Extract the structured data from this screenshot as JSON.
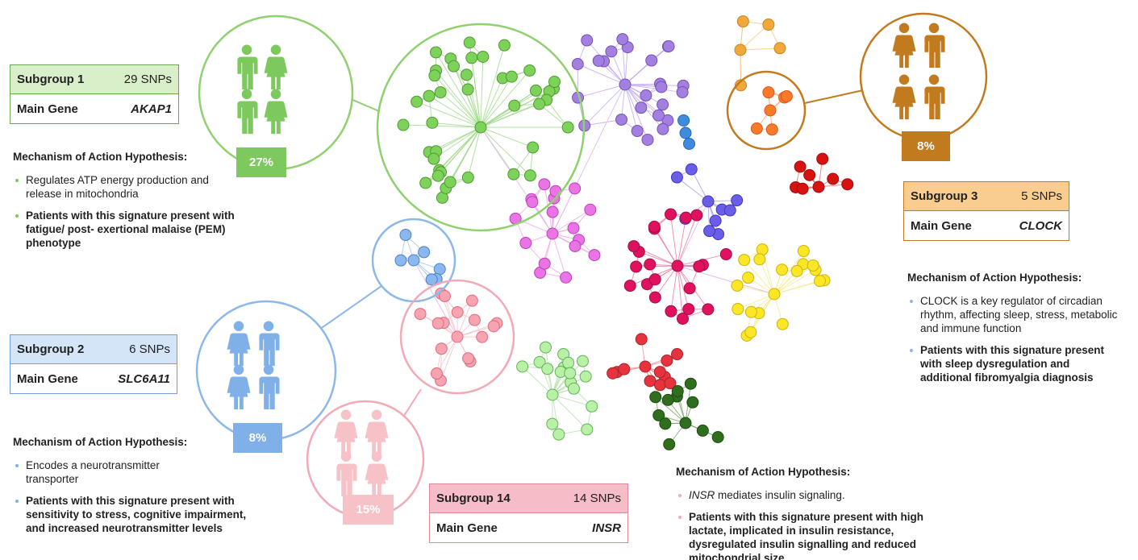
{
  "subgroups": [
    {
      "name": "Subgroup 1",
      "snps": "29 SNPs",
      "gene_label": "Main Gene",
      "gene": "AKAP1",
      "percent": "27%",
      "mechanism_title": "Mechanism of Action Hypothesis:",
      "bullets": [
        "Regulates ATP energy production and release in mitochondria",
        "Patients with this signature present with fatigue/ post- exertional malaise (PEM) phenotype"
      ]
    },
    {
      "name": "Subgroup 2",
      "snps": "6 SNPs",
      "gene_label": "Main Gene",
      "gene": "SLC6A11",
      "percent": "8%",
      "mechanism_title": "Mechanism of Action Hypothesis:",
      "bullets": [
        "Encodes a neurotransmitter transporter",
        "Patients with this signature present with sensitivity to stress, cognitive impairment, and increased neurotransmitter levels"
      ]
    },
    {
      "name": "Subgroup 3",
      "snps": "5 SNPs",
      "gene_label": "Main Gene",
      "gene": "CLOCK",
      "percent": "8%",
      "mechanism_title": "Mechanism of Action Hypothesis:",
      "bullets": [
        "CLOCK is a key regulator of circadian rhythm, affecting sleep, stress, metabolic and immune function",
        "Patients with this signature present with sleep dysregulation and additional fibromyalgia diagnosis"
      ]
    },
    {
      "name": "Subgroup 14",
      "snps": "14 SNPs",
      "gene_label": "Main Gene",
      "gene": "INSR",
      "percent": "15%",
      "mechanism_title": "Mechanism of Action Hypothesis:",
      "bullets": [
        [
          "INSR",
          "mediates insulin signaling."
        ],
        "Patients with this signature present with high lactate, implicated in insulin resistance, dysregulated insulin signalling and reduced mitochondrial size"
      ]
    }
  ]
}
